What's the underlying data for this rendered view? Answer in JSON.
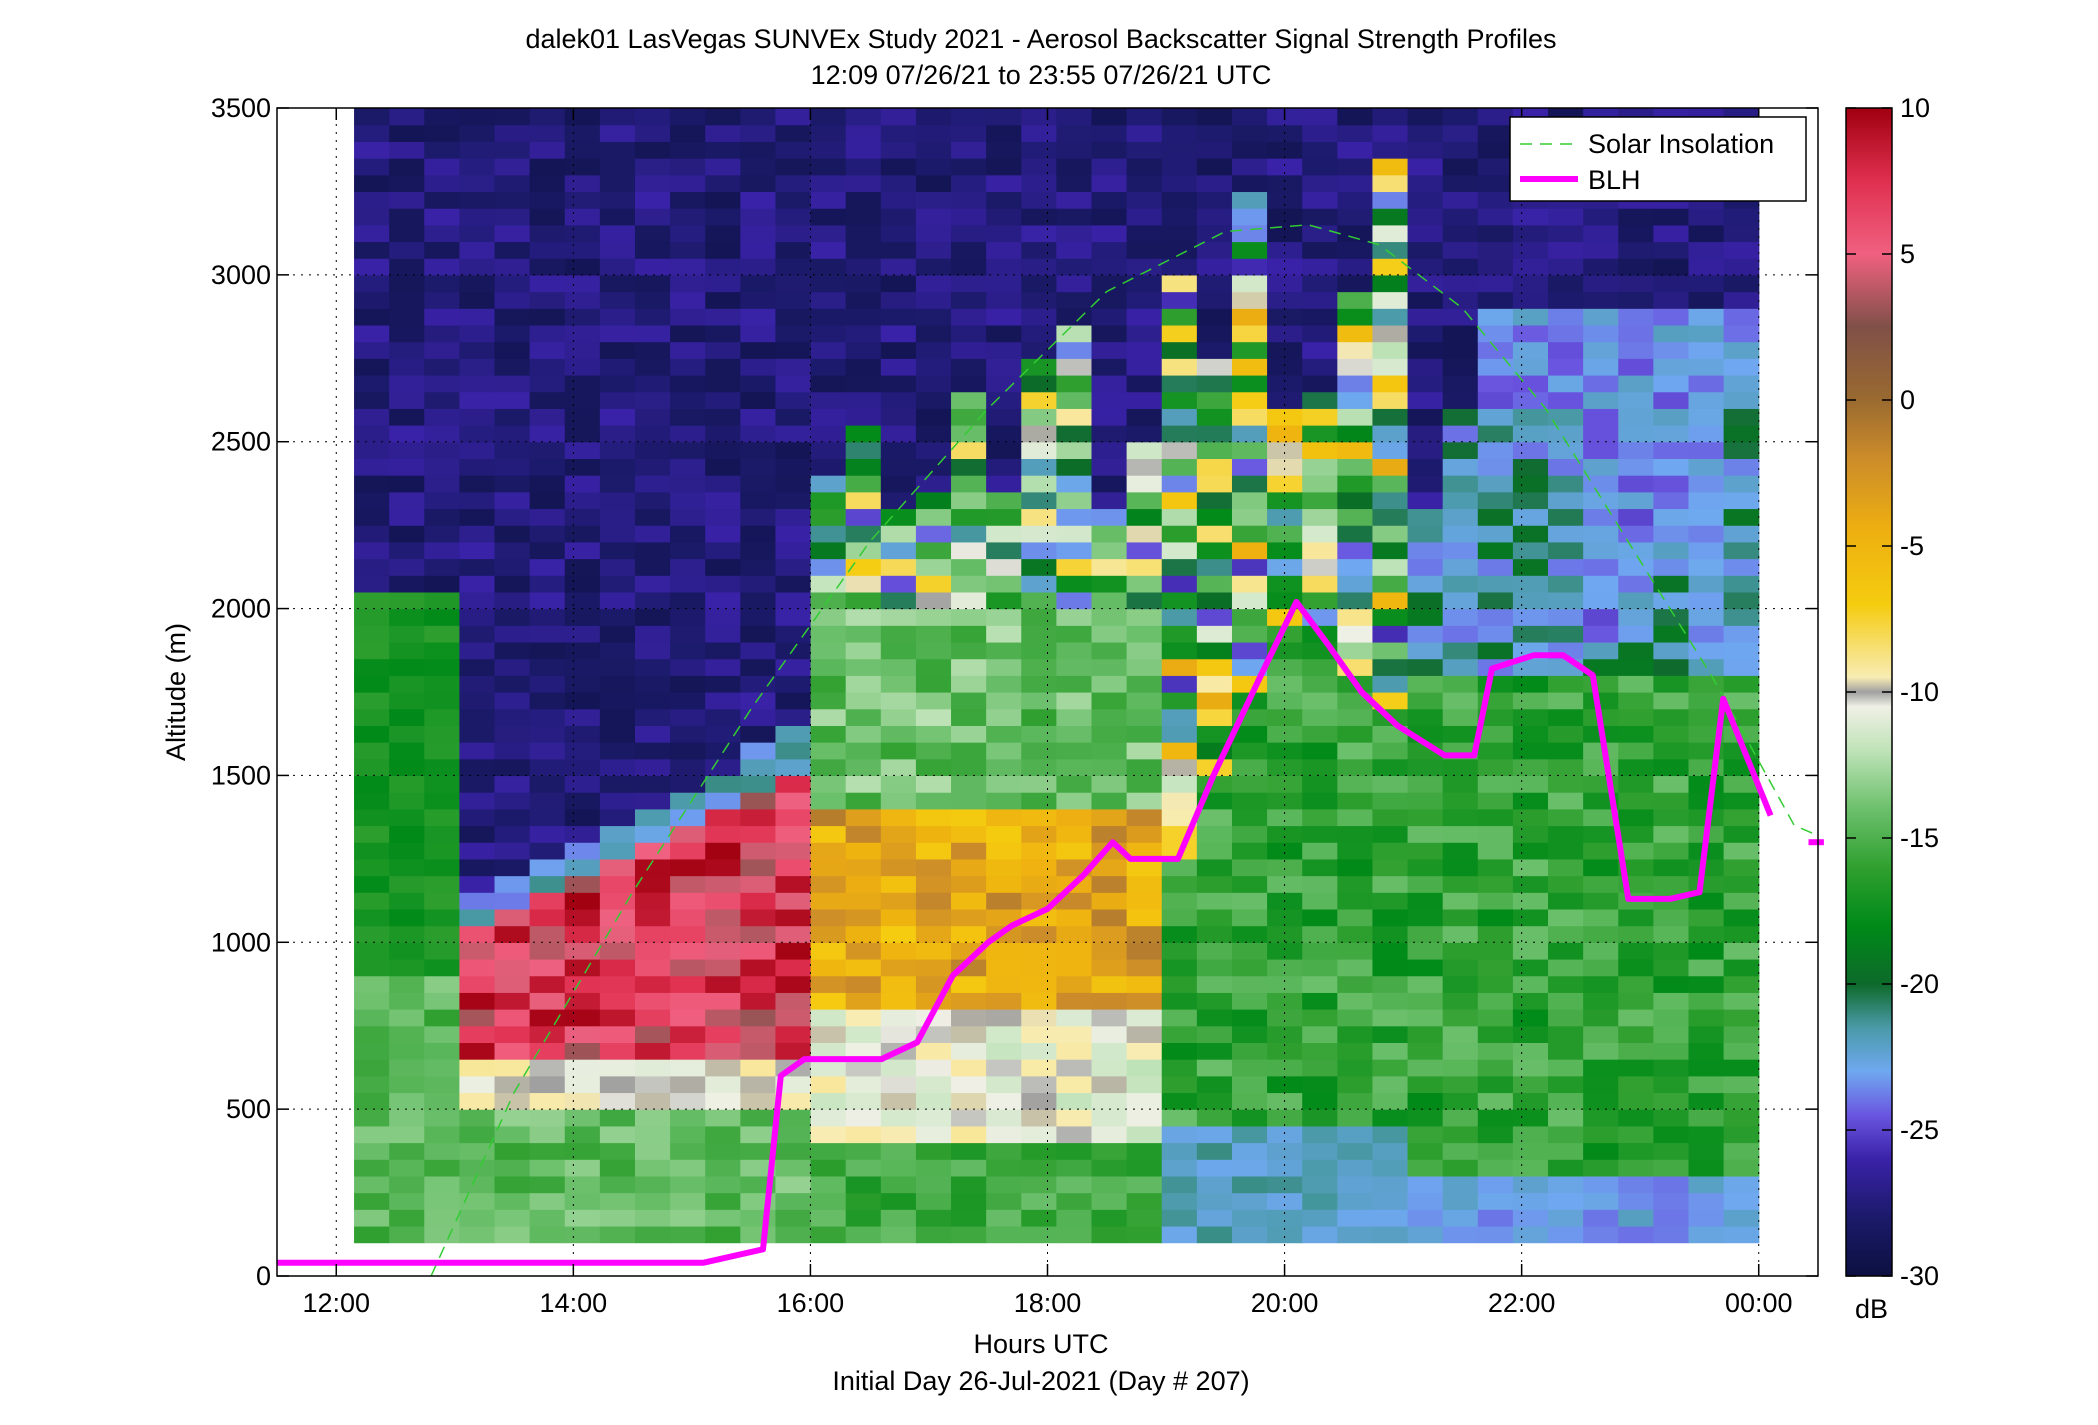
{
  "chart_data": {
    "type": "heatmap",
    "title_lines": [
      "dalek01 LasVegas SUNVEx Study 2021 - Aerosol Backscatter Signal Strength Profiles",
      "12:09 07/26/21 to 23:55 07/26/21  UTC"
    ],
    "xlabel": "Hours UTC",
    "xlabel_sub": "Initial Day 26-Jul-2021 (Day # 207)",
    "ylabel": "Altitude (m)",
    "xlim_hours": [
      11.5,
      24.5
    ],
    "ylim": [
      0,
      3500
    ],
    "x_ticks": [
      {
        "h": 12,
        "label": "12:00"
      },
      {
        "h": 14,
        "label": "14:00"
      },
      {
        "h": 16,
        "label": "16:00"
      },
      {
        "h": 18,
        "label": "18:00"
      },
      {
        "h": 20,
        "label": "20:00"
      },
      {
        "h": 22,
        "label": "22:00"
      },
      {
        "h": 24,
        "label": "00:00"
      }
    ],
    "y_ticks": [
      0,
      500,
      1000,
      1500,
      2000,
      2500,
      3000,
      3500
    ],
    "grid": true,
    "legend_position": "top-right",
    "legend": [
      {
        "label": "Solar Insolation",
        "color": "#33cc33",
        "style": "dashed"
      },
      {
        "label": "BLH",
        "color": "#ff00ff",
        "style": "solid"
      }
    ],
    "colorbar": {
      "unit": "dB",
      "range": [
        -30,
        10
      ],
      "ticks": [
        10,
        5,
        0,
        -5,
        -10,
        -15,
        -20,
        -25,
        -30
      ],
      "colors": [
        {
          "v": -30,
          "c": "#0c1040"
        },
        {
          "v": -28,
          "c": "#1b1a6a"
        },
        {
          "v": -26,
          "c": "#3a22a8"
        },
        {
          "v": -24.5,
          "c": "#6a55e0"
        },
        {
          "v": -23,
          "c": "#6fa8f0"
        },
        {
          "v": -21.5,
          "c": "#4a9aa8"
        },
        {
          "v": -20,
          "c": "#0d6a2a"
        },
        {
          "v": -18,
          "c": "#008a18"
        },
        {
          "v": -16,
          "c": "#30a030"
        },
        {
          "v": -14,
          "c": "#6cc06c"
        },
        {
          "v": -12,
          "c": "#bfe3b8"
        },
        {
          "v": -10.5,
          "c": "#f0f0e6"
        },
        {
          "v": -10,
          "c": "#a0a0a0"
        },
        {
          "v": -9.5,
          "c": "#f8ecb4"
        },
        {
          "v": -7,
          "c": "#f5cc10"
        },
        {
          "v": -4.5,
          "c": "#eeb010"
        },
        {
          "v": -2,
          "c": "#cc8c2a"
        },
        {
          "v": 0,
          "c": "#9a6a30"
        },
        {
          "v": 2.5,
          "c": "#805048"
        },
        {
          "v": 5,
          "c": "#f06080"
        },
        {
          "v": 7.5,
          "c": "#e03050"
        },
        {
          "v": 10,
          "c": "#a00010"
        }
      ]
    },
    "backscatter_grid": {
      "t_start_hours": 12.15,
      "t_end_hours": 24.0,
      "n_time_bins": 40,
      "alt_start_m": 100,
      "alt_end_m": 3500,
      "n_alt_bins": 68,
      "description_of_values": "dB, per time bin column from ground up"
    },
    "series": [
      {
        "name": "BLH",
        "x_hours": [
          11.5,
          15.1,
          15.6,
          15.75,
          15.95,
          16.6,
          16.9,
          17.2,
          17.5,
          17.7,
          18.0,
          18.3,
          18.55,
          18.7,
          19.1,
          19.4,
          19.8,
          20.1,
          20.35,
          20.65,
          20.95,
          21.35,
          21.6,
          21.75,
          22.1,
          22.35,
          22.6,
          22.9,
          23.25,
          23.5,
          23.7,
          24.1
        ],
        "y": [
          40,
          40,
          80,
          600,
          650,
          650,
          700,
          900,
          1000,
          1050,
          1100,
          1200,
          1300,
          1250,
          1250,
          1500,
          1800,
          2020,
          1900,
          1750,
          1650,
          1560,
          1560,
          1820,
          1860,
          1860,
          1800,
          1130,
          1130,
          1150,
          1730,
          1380
        ]
      },
      {
        "name": "BLH_segment_end",
        "x_hours": [
          24.42,
          24.55
        ],
        "y": [
          1300,
          1300
        ]
      },
      {
        "name": "Solar Insolation",
        "x_hours": [
          12.8,
          13.5,
          14.5,
          15.5,
          16.5,
          17.5,
          18.5,
          19.5,
          20.2,
          20.8,
          21.5,
          22.2,
          22.9,
          23.6,
          24.3,
          24.5
        ],
        "y": [
          0,
          550,
          1150,
          1700,
          2200,
          2600,
          2950,
          3130,
          3150,
          3090,
          2900,
          2600,
          2200,
          1800,
          1350,
          1320
        ]
      }
    ]
  }
}
